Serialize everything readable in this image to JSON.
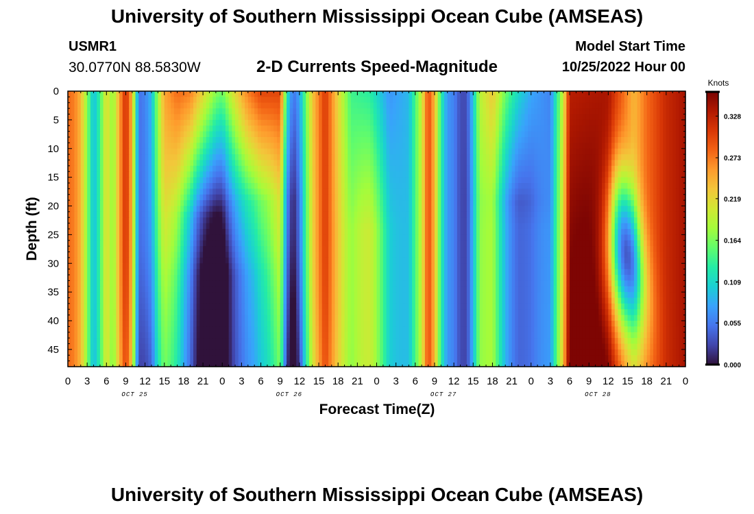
{
  "header": {
    "title": "University of Southern Mississippi Ocean Cube (AMSEAS)",
    "station": "USMR1",
    "coordinates": "30.0770N  88.5830W",
    "subtitle": "2-D Currents Speed-Magnitude",
    "model_start_label": "Model Start Time",
    "model_start_value": "10/25/2022 Hour 00"
  },
  "footer": {
    "title": "University of Southern Mississippi Ocean Cube (AMSEAS)"
  },
  "chart_data": {
    "type": "heatmap",
    "title": "2-D Currents Speed-Magnitude",
    "xlabel": "Forecast Time(Z)",
    "ylabel": "Depth (ft)",
    "x_ticks": [
      "0",
      "3",
      "6",
      "9",
      "12",
      "15",
      "18",
      "21",
      "0",
      "3",
      "6",
      "9",
      "12",
      "15",
      "18",
      "21",
      "0",
      "3",
      "6",
      "9",
      "12",
      "15",
      "18",
      "21",
      "0",
      "3",
      "6",
      "9",
      "12",
      "15",
      "18",
      "21",
      "0"
    ],
    "x_range_hours": [
      0,
      96
    ],
    "day_labels": [
      {
        "label": "OCT 25",
        "hour": 12
      },
      {
        "label": "OCT 26",
        "hour": 36
      },
      {
        "label": "OCT 27",
        "hour": 60
      },
      {
        "label": "OCT 28",
        "hour": 84
      }
    ],
    "y_ticks": [
      0,
      5,
      10,
      15,
      20,
      25,
      30,
      35,
      40,
      45
    ],
    "y_range_ft": [
      0,
      48
    ],
    "colorbar": {
      "label": "Knots",
      "ticks": [
        "0.000",
        "0.055",
        "0.109",
        "0.164",
        "0.219",
        "0.273",
        "0.328"
      ],
      "range": [
        0,
        0.36
      ],
      "colors": [
        "#30123b",
        "#4145ab",
        "#4675ed",
        "#39a2fc",
        "#1bcfd4",
        "#24eca6",
        "#61fc6c",
        "#a4fc3b",
        "#d1e834",
        "#f3c63a",
        "#fe9b2d",
        "#f36315",
        "#d93806",
        "#b11901",
        "#7a0403"
      ]
    },
    "surface_speed_knots": [
      {
        "hour": 0,
        "value": 0.28
      },
      {
        "hour": 1,
        "value": 0.27
      },
      {
        "hour": 2,
        "value": 0.24
      },
      {
        "hour": 3,
        "value": 0.17
      },
      {
        "hour": 4,
        "value": 0.09
      },
      {
        "hour": 5,
        "value": 0.14
      },
      {
        "hour": 6,
        "value": 0.22
      },
      {
        "hour": 7,
        "value": 0.17
      },
      {
        "hour": 8,
        "value": 0.25
      },
      {
        "hour": 9,
        "value": 0.32
      },
      {
        "hour": 10,
        "value": 0.24
      },
      {
        "hour": 11,
        "value": 0.05
      },
      {
        "hour": 12,
        "value": 0.06
      },
      {
        "hour": 13,
        "value": 0.09
      },
      {
        "hour": 14,
        "value": 0.18
      },
      {
        "hour": 15,
        "value": 0.25
      },
      {
        "hour": 17,
        "value": 0.28
      },
      {
        "hour": 19,
        "value": 0.27
      },
      {
        "hour": 21,
        "value": 0.22
      },
      {
        "hour": 23,
        "value": 0.17
      },
      {
        "hour": 24,
        "value": 0.16
      },
      {
        "hour": 26,
        "value": 0.22
      },
      {
        "hour": 28,
        "value": 0.27
      },
      {
        "hour": 30,
        "value": 0.3
      },
      {
        "hour": 33,
        "value": 0.3
      },
      {
        "hour": 34,
        "value": 0.13
      },
      {
        "hour": 35,
        "value": 0.05
      },
      {
        "hour": 36,
        "value": 0.08
      },
      {
        "hour": 37,
        "value": 0.16
      },
      {
        "hour": 38,
        "value": 0.23
      },
      {
        "hour": 40,
        "value": 0.31
      },
      {
        "hour": 42,
        "value": 0.22
      },
      {
        "hour": 44,
        "value": 0.14
      },
      {
        "hour": 47,
        "value": 0.13
      },
      {
        "hour": 48,
        "value": 0.11
      },
      {
        "hour": 50,
        "value": 0.07
      },
      {
        "hour": 53,
        "value": 0.09
      },
      {
        "hour": 55,
        "value": 0.2
      },
      {
        "hour": 56,
        "value": 0.3
      },
      {
        "hour": 57,
        "value": 0.24
      },
      {
        "hour": 58,
        "value": 0.13
      },
      {
        "hour": 59,
        "value": 0.07
      },
      {
        "hour": 60,
        "value": 0.06
      },
      {
        "hour": 61,
        "value": 0.03
      },
      {
        "hour": 62,
        "value": 0.03
      },
      {
        "hour": 63,
        "value": 0.1
      },
      {
        "hour": 64,
        "value": 0.19
      },
      {
        "hour": 66,
        "value": 0.23
      },
      {
        "hour": 68,
        "value": 0.16
      },
      {
        "hour": 70,
        "value": 0.11
      },
      {
        "hour": 72,
        "value": 0.08
      },
      {
        "hour": 75,
        "value": 0.06
      },
      {
        "hour": 77,
        "value": 0.2
      },
      {
        "hour": 78,
        "value": 0.33
      },
      {
        "hour": 84,
        "value": 0.34
      },
      {
        "hour": 88,
        "value": 0.24
      },
      {
        "hour": 90,
        "value": 0.28
      },
      {
        "hour": 93,
        "value": 0.32
      },
      {
        "hour": 96,
        "value": 0.34
      }
    ]
  }
}
